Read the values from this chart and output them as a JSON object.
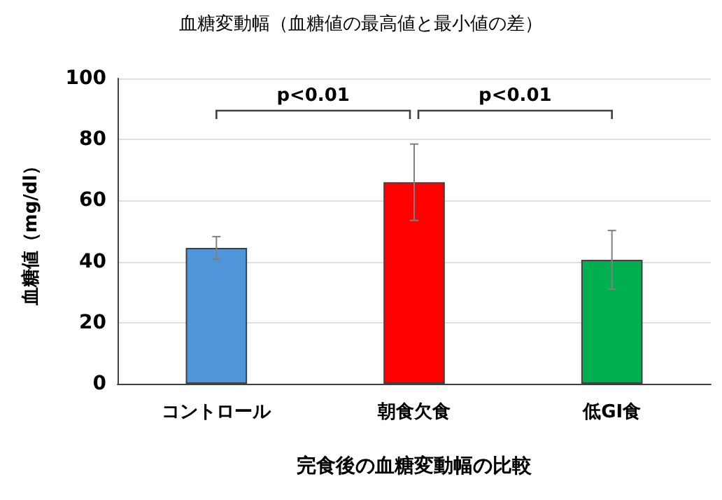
{
  "chart_data": {
    "type": "bar",
    "title": "血糖変動幅（血糖値の最高値と最小値の差）",
    "xlabel": "完食後の血糖変動幅の比較",
    "ylabel": "血糖値（mg/dl）",
    "categories": [
      "コントロール",
      "朝食欠食",
      "低GI食"
    ],
    "values": [
      44.5,
      66,
      40.6
    ],
    "colors": [
      "#4f95d9",
      "#ff0000",
      "#00b050"
    ],
    "errors": [
      3.7,
      12.5,
      9.6
    ],
    "ylim": [
      0,
      100
    ],
    "yticks": [
      0,
      20,
      40,
      60,
      80,
      100
    ],
    "grid": "y",
    "annotations": [
      "p<0.01",
      "p<0.01"
    ]
  }
}
